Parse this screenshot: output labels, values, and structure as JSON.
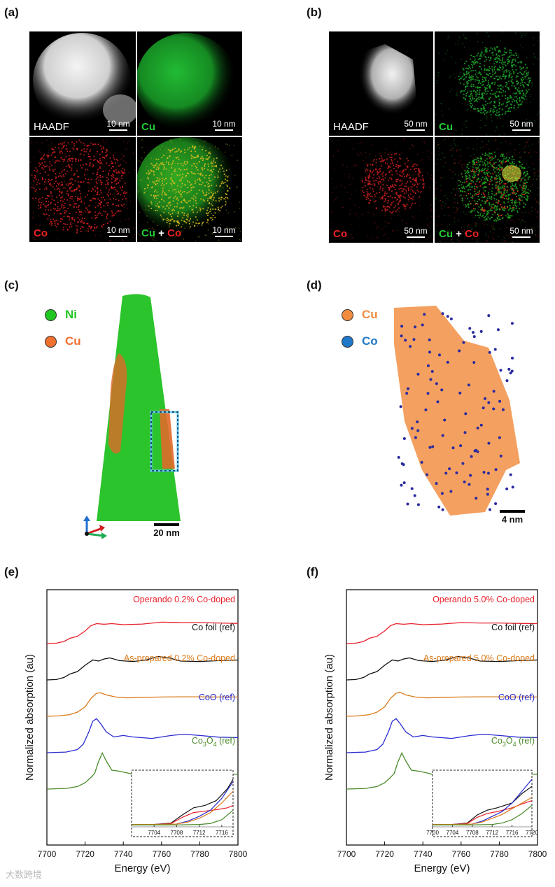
{
  "panels": {
    "a": {
      "label": "(a)",
      "tiles": [
        {
          "label": "HAADF",
          "scalebar": "10 nm"
        },
        {
          "label": "Cu",
          "scalebar": "10 nm"
        },
        {
          "label": "Co",
          "scalebar": "10 nm"
        },
        {
          "label_cu": "Cu",
          "label_plus": "+",
          "label_co": "Co",
          "scalebar": "10 nm"
        }
      ]
    },
    "b": {
      "label": "(b)",
      "tiles": [
        {
          "label": "HAADF",
          "scalebar": "50 nm"
        },
        {
          "label": "Cu",
          "scalebar": "50 nm"
        },
        {
          "label": "Co",
          "scalebar": "50 nm"
        },
        {
          "label_cu": "Cu",
          "label_plus": "+",
          "label_co": "Co",
          "scalebar": "50 nm"
        }
      ]
    },
    "c": {
      "label": "(c)",
      "legend": [
        {
          "name": "Ni",
          "color": "#22c622"
        },
        {
          "name": "Cu",
          "color": "#f07030"
        }
      ],
      "scalebar": "20 nm"
    },
    "d": {
      "label": "(d)",
      "legend": [
        {
          "name": "Cu",
          "color": "#f08c40"
        },
        {
          "name": "Co",
          "color": "#1f78c8"
        }
      ],
      "scalebar": "4 nm"
    },
    "e": {
      "label": "(e)"
    },
    "f": {
      "label": "(f)"
    }
  },
  "colors": {
    "cu_green": "#22cc33",
    "co_red": "#ee2222",
    "operando": "#e8202a",
    "foil": "#111111",
    "asprep": "#d97a1a",
    "coo": "#2a2ad0",
    "co3o4": "#4a8a2a"
  },
  "chart_data": [
    {
      "type": "line",
      "panel": "e",
      "xlabel": "Energy (eV)",
      "ylabel": "Normalized absorption (au)",
      "xlim": [
        7700,
        7800
      ],
      "xticks": [
        "7700",
        "7720",
        "7740",
        "7760",
        "7780",
        "7800"
      ],
      "series": [
        {
          "name": "Operando 0.2% Co-doped",
          "color": "#e8202a",
          "offset": 4.0,
          "x": [
            7700,
            7705,
            7709,
            7712,
            7716,
            7720,
            7723,
            7726,
            7730,
            7734,
            7740,
            7750,
            7760,
            7770,
            7780,
            7790,
            7800
          ],
          "y": [
            0,
            0.02,
            0.1,
            0.25,
            0.35,
            0.6,
            0.85,
            0.95,
            0.92,
            0.95,
            0.9,
            0.93,
            1.02,
            1.0,
            1.0,
            0.98,
            0.96
          ]
        },
        {
          "name": "Co foil (ref)",
          "color": "#111111",
          "offset": 3.0,
          "x": [
            7700,
            7705,
            7709,
            7712,
            7716,
            7720,
            7724,
            7727,
            7730,
            7733,
            7738,
            7745,
            7752,
            7758,
            7764,
            7770,
            7780,
            7790,
            7800
          ],
          "y": [
            0,
            0.02,
            0.12,
            0.28,
            0.4,
            0.7,
            0.95,
            0.9,
            1.0,
            1.05,
            0.92,
            0.88,
            0.95,
            1.12,
            1.05,
            0.9,
            0.88,
            0.92,
            0.95
          ]
        },
        {
          "name": "As-prepared 0.2% Co-doped",
          "color": "#d97a1a",
          "offset": 2.0,
          "x": [
            7700,
            7706,
            7712,
            7716,
            7720,
            7723,
            7726,
            7728,
            7731,
            7736,
            7742,
            7750,
            7760,
            7770,
            7780,
            7790,
            7800
          ],
          "y": [
            0,
            0.02,
            0.08,
            0.2,
            0.45,
            0.85,
            1.1,
            1.12,
            1.02,
            0.92,
            0.88,
            0.9,
            0.92,
            0.93,
            0.93,
            0.92,
            0.92
          ]
        },
        {
          "name": "CoO (ref)",
          "color": "#2a2ad0",
          "offset": 1.0,
          "x": [
            7700,
            7710,
            7716,
            7719,
            7722,
            7724,
            7726,
            7728,
            7731,
            7735,
            7740,
            7745,
            7755,
            7765,
            7772,
            7780,
            7790,
            7800
          ],
          "y": [
            0,
            0.03,
            0.15,
            0.4,
            1.0,
            1.5,
            1.62,
            1.4,
            1.0,
            0.75,
            0.82,
            0.75,
            0.68,
            0.82,
            0.88,
            0.82,
            0.74,
            0.72
          ]
        },
        {
          "name": "Co3O4 (ref)",
          "name_base": "Co",
          "name_sub1": "3",
          "name_mid": "O",
          "name_sub2": "4",
          "name_tail": " (ref)",
          "color": "#4a8a2a",
          "offset": 0.0,
          "x": [
            7700,
            7710,
            7716,
            7720,
            7723,
            7725,
            7727,
            7729,
            7731,
            7734,
            7738,
            7743,
            7750,
            7760,
            7770,
            7780,
            7790,
            7800
          ],
          "y": [
            0,
            0.03,
            0.12,
            0.3,
            0.55,
            0.75,
            1.3,
            1.72,
            1.35,
            0.9,
            0.85,
            0.75,
            0.55,
            0.45,
            0.55,
            0.7,
            0.75,
            0.7
          ]
        }
      ],
      "inset": {
        "xlim": [
          7700,
          7718
        ],
        "xticks": [
          "7704",
          "7708",
          "7712",
          "7716"
        ],
        "series": [
          {
            "color": "#111111",
            "x": [
              7700,
              7704,
              7707,
              7709,
              7711,
              7713,
              7715,
              7717,
              7718
            ],
            "y": [
              0.05,
              0.05,
              0.08,
              0.25,
              0.4,
              0.45,
              0.55,
              0.8,
              1.0
            ]
          },
          {
            "color": "#e8202a",
            "x": [
              7700,
              7704,
              7707,
              7709,
              7711,
              7713,
              7715,
              7717,
              7718
            ],
            "y": [
              0.05,
              0.05,
              0.07,
              0.2,
              0.3,
              0.33,
              0.36,
              0.4,
              0.45
            ]
          },
          {
            "color": "#2a2ad0",
            "x": [
              7700,
              7704,
              7708,
              7710,
              7712,
              7714,
              7716,
              7718
            ],
            "y": [
              0.05,
              0.05,
              0.06,
              0.12,
              0.22,
              0.35,
              0.6,
              0.95
            ]
          },
          {
            "color": "#d97a1a",
            "x": [
              7700,
              7704,
              7708,
              7710,
              7712,
              7714,
              7716,
              7718
            ],
            "y": [
              0.05,
              0.05,
              0.06,
              0.1,
              0.18,
              0.3,
              0.5,
              0.75
            ]
          },
          {
            "color": "#4a8a2a",
            "x": [
              7700,
              7704,
              7708,
              7712,
              7714,
              7716,
              7718
            ],
            "y": [
              0.04,
              0.04,
              0.04,
              0.05,
              0.07,
              0.15,
              0.35
            ]
          }
        ]
      }
    },
    {
      "type": "line",
      "panel": "f",
      "xlabel": "Energy (eV)",
      "ylabel": "Normalized absorption (au)",
      "xlim": [
        7700,
        7800
      ],
      "xticks": [
        "7700",
        "7720",
        "7740",
        "7760",
        "7780",
        "7800"
      ],
      "series": [
        {
          "name": "Operando 5.0% Co-doped",
          "color": "#e8202a",
          "offset": 4.0,
          "x": [
            7700,
            7705,
            7709,
            7712,
            7716,
            7720,
            7723,
            7726,
            7730,
            7734,
            7740,
            7750,
            7760,
            7770,
            7780,
            7790,
            7800
          ],
          "y": [
            0,
            0.02,
            0.1,
            0.25,
            0.35,
            0.6,
            0.85,
            0.95,
            0.92,
            0.95,
            0.9,
            0.93,
            1.0,
            0.98,
            0.98,
            0.96,
            0.95
          ]
        },
        {
          "name": "Co foil (ref)",
          "color": "#111111",
          "offset": 3.0,
          "x": [
            7700,
            7705,
            7709,
            7712,
            7716,
            7720,
            7724,
            7727,
            7730,
            7733,
            7738,
            7745,
            7752,
            7758,
            7764,
            7770,
            7780,
            7790,
            7800
          ],
          "y": [
            0,
            0.02,
            0.12,
            0.28,
            0.4,
            0.7,
            0.95,
            0.9,
            1.0,
            1.05,
            0.92,
            0.88,
            0.95,
            1.12,
            1.05,
            0.9,
            0.88,
            0.92,
            0.95
          ]
        },
        {
          "name": "As-prepared 5.0% Co-doped",
          "color": "#d97a1a",
          "offset": 2.0,
          "x": [
            7700,
            7706,
            7712,
            7716,
            7720,
            7723,
            7726,
            7728,
            7731,
            7736,
            7742,
            7750,
            7760,
            7770,
            7780,
            7790,
            7800
          ],
          "y": [
            0,
            0.02,
            0.08,
            0.2,
            0.45,
            0.85,
            1.1,
            1.15,
            1.02,
            0.92,
            0.88,
            0.9,
            0.92,
            0.93,
            0.93,
            0.92,
            0.92
          ]
        },
        {
          "name": "CoO (ref)",
          "color": "#2a2ad0",
          "offset": 1.0,
          "x": [
            7700,
            7710,
            7716,
            7719,
            7722,
            7724,
            7726,
            7728,
            7731,
            7735,
            7740,
            7745,
            7755,
            7765,
            7772,
            7780,
            7790,
            7800
          ],
          "y": [
            0,
            0.03,
            0.15,
            0.4,
            1.0,
            1.5,
            1.62,
            1.4,
            1.0,
            0.75,
            0.82,
            0.75,
            0.68,
            0.82,
            0.88,
            0.82,
            0.74,
            0.72
          ]
        },
        {
          "name": "Co3O4 (ref)",
          "name_base": "Co",
          "name_sub1": "3",
          "name_mid": "O",
          "name_sub2": "4",
          "name_tail": " (ref)",
          "color": "#4a8a2a",
          "offset": 0.0,
          "x": [
            7700,
            7710,
            7716,
            7720,
            7723,
            7725,
            7727,
            7729,
            7731,
            7734,
            7738,
            7743,
            7750,
            7760,
            7770,
            7780,
            7790,
            7800
          ],
          "y": [
            0,
            0.03,
            0.12,
            0.3,
            0.55,
            0.75,
            1.3,
            1.72,
            1.35,
            0.9,
            0.85,
            0.75,
            0.55,
            0.45,
            0.55,
            0.7,
            0.75,
            0.7
          ]
        }
      ],
      "inset": {
        "xlim": [
          7700,
          7720
        ],
        "xticks": [
          "7700",
          "7704",
          "7708",
          "7712",
          "7716",
          "7720"
        ],
        "series": [
          {
            "color": "#111111",
            "x": [
              7700,
              7704,
              7707,
              7709,
              7711,
              7713,
              7716,
              7718,
              7720
            ],
            "y": [
              0.05,
              0.05,
              0.08,
              0.25,
              0.35,
              0.4,
              0.5,
              0.7,
              0.85
            ]
          },
          {
            "color": "#e8202a",
            "x": [
              7700,
              7704,
              7707,
              7709,
              7711,
              7713,
              7716,
              7718,
              7720
            ],
            "y": [
              0.05,
              0.05,
              0.07,
              0.2,
              0.28,
              0.32,
              0.4,
              0.48,
              0.55
            ]
          },
          {
            "color": "#2a2ad0",
            "x": [
              7700,
              7704,
              7708,
              7710,
              7712,
              7714,
              7716,
              7718,
              7720
            ],
            "y": [
              0.05,
              0.05,
              0.06,
              0.12,
              0.22,
              0.32,
              0.5,
              0.75,
              1.0
            ]
          },
          {
            "color": "#d97a1a",
            "x": [
              7700,
              7704,
              7708,
              7710,
              7712,
              7714,
              7716,
              7718,
              7720
            ],
            "y": [
              0.05,
              0.05,
              0.06,
              0.1,
              0.18,
              0.26,
              0.38,
              0.5,
              0.62
            ]
          },
          {
            "color": "#4a8a2a",
            "x": [
              7700,
              7704,
              7708,
              7712,
              7714,
              7716,
              7718,
              7720
            ],
            "y": [
              0.04,
              0.04,
              0.04,
              0.05,
              0.08,
              0.15,
              0.28,
              0.45
            ]
          }
        ]
      }
    }
  ],
  "watermark": "大数跨境"
}
